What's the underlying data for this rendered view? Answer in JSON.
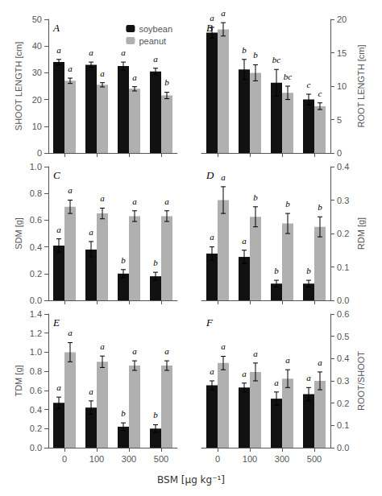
{
  "chart_data": [
    {
      "type": "bar",
      "title": "A",
      "ylabel": "SHOOT LENGTH [cm]",
      "categories": [
        "0",
        "100",
        "300",
        "500"
      ],
      "series": [
        {
          "name": "soybean",
          "color": "#111111",
          "values": [
            34.0,
            33.0,
            32.5,
            30.5
          ],
          "errors": [
            1.0,
            1.0,
            1.5,
            1.2
          ],
          "annotations": [
            "a",
            "a",
            "a",
            "a"
          ]
        },
        {
          "name": "peanut",
          "color": "#b0b0b0",
          "values": [
            27.0,
            25.5,
            24.0,
            21.5
          ],
          "errors": [
            1.0,
            0.8,
            0.8,
            1.2
          ],
          "annotations": [
            "a",
            "a",
            "a",
            "b"
          ]
        }
      ],
      "ylim": [
        0,
        50
      ],
      "yticks": [
        0,
        10,
        20,
        30,
        40,
        50
      ],
      "grid": false,
      "legend": "upper right",
      "tick_labels": "y"
    },
    {
      "type": "bar",
      "title": "B",
      "ylabel": "ROOT LENGTH [cm]",
      "categories": [
        "0",
        "100",
        "300",
        "500"
      ],
      "series": [
        {
          "name": "soybean",
          "color": "#111111",
          "values": [
            18.0,
            12.5,
            10.5,
            8.0
          ],
          "errors": [
            0.8,
            1.5,
            2.0,
            0.8
          ],
          "annotations": [
            "a",
            "b",
            "bc",
            "c"
          ]
        },
        {
          "name": "peanut",
          "color": "#b0b0b0",
          "values": [
            18.5,
            12.0,
            9.0,
            7.0
          ],
          "errors": [
            1.0,
            1.2,
            1.0,
            0.5
          ],
          "annotations": [
            "a",
            "b",
            "bc",
            "c"
          ]
        }
      ],
      "ylim": [
        0,
        20
      ],
      "yticks": [
        0,
        5,
        10,
        15,
        20
      ],
      "grid": false,
      "legend": false,
      "tick_labels": "y"
    },
    {
      "type": "bar",
      "title": "C",
      "ylabel": "SDM [g]",
      "categories": [
        "0",
        "100",
        "300",
        "500"
      ],
      "series": [
        {
          "name": "soybean",
          "color": "#111111",
          "values": [
            0.41,
            0.38,
            0.2,
            0.18
          ],
          "errors": [
            0.05,
            0.06,
            0.03,
            0.03
          ],
          "annotations": [
            "a",
            "a",
            "b",
            "b"
          ]
        },
        {
          "name": "peanut",
          "color": "#b0b0b0",
          "values": [
            0.7,
            0.65,
            0.63,
            0.63
          ],
          "errors": [
            0.05,
            0.04,
            0.04,
            0.04
          ],
          "annotations": [
            "a",
            "a",
            "a",
            "a"
          ]
        }
      ],
      "ylim": [
        0,
        1.0
      ],
      "yticks": [
        {
          "value": 0,
          "label": "0.0"
        },
        0.2,
        0.4,
        0.6,
        0.8,
        {
          "value": 1.0,
          "label": "1.0"
        }
      ],
      "grid": false,
      "legend": false,
      "tick_labels": "y"
    },
    {
      "type": "bar",
      "title": "D",
      "ylabel": "RDM [g]",
      "categories": [
        "0",
        "100",
        "300",
        "500"
      ],
      "series": [
        {
          "name": "soybean",
          "color": "#111111",
          "values": [
            0.14,
            0.13,
            0.05,
            0.05
          ],
          "errors": [
            0.02,
            0.02,
            0.01,
            0.01
          ],
          "annotations": [
            "a",
            "a",
            "b",
            "b"
          ]
        },
        {
          "name": "peanut",
          "color": "#b0b0b0",
          "values": [
            0.3,
            0.25,
            0.23,
            0.22
          ],
          "errors": [
            0.04,
            0.03,
            0.03,
            0.03
          ],
          "annotations": [
            "a",
            "b",
            "b",
            "b"
          ]
        }
      ],
      "ylim": [
        0,
        0.4
      ],
      "yticks": [
        {
          "value": 0,
          "label": "0.0"
        },
        0.1,
        0.2,
        0.3,
        0.4
      ],
      "grid": false,
      "legend": false,
      "tick_labels": "y"
    },
    {
      "type": "bar",
      "title": "E",
      "ylabel": "TDM [g]",
      "xlabel": "BSM [µg kg⁻¹]",
      "categories": [
        "0",
        "100",
        "300",
        "500"
      ],
      "series": [
        {
          "name": "soybean",
          "color": "#111111",
          "values": [
            0.47,
            0.42,
            0.22,
            0.2
          ],
          "errors": [
            0.06,
            0.07,
            0.04,
            0.04
          ],
          "annotations": [
            "a",
            "a",
            "b",
            "b"
          ]
        },
        {
          "name": "peanut",
          "color": "#b0b0b0",
          "values": [
            1.0,
            0.9,
            0.86,
            0.86
          ],
          "errors": [
            0.1,
            0.06,
            0.05,
            0.05
          ],
          "annotations": [
            "a",
            "a",
            "a",
            "a"
          ]
        }
      ],
      "ylim": [
        0,
        1.4
      ],
      "yticks": [
        {
          "value": 0,
          "label": "0.0"
        },
        0.2,
        0.4,
        0.6,
        0.8,
        {
          "value": 1.0,
          "label": "1.0"
        },
        1.2,
        1.4
      ],
      "grid": false,
      "legend": false
    },
    {
      "type": "bar",
      "title": "F",
      "ylabel": "ROOT/SHOOT",
      "categories": [
        "0",
        "100",
        "300",
        "500"
      ],
      "series": [
        {
          "name": "soybean",
          "color": "#111111",
          "values": [
            0.28,
            0.27,
            0.22,
            0.24
          ],
          "errors": [
            0.02,
            0.02,
            0.03,
            0.03
          ],
          "annotations": [
            "a",
            "a",
            "a",
            "a"
          ]
        },
        {
          "name": "peanut",
          "color": "#b0b0b0",
          "values": [
            0.38,
            0.34,
            0.31,
            0.3
          ],
          "errors": [
            0.03,
            0.04,
            0.04,
            0.04
          ],
          "annotations": [
            "a",
            "a",
            "a",
            "a"
          ]
        }
      ],
      "ylim": [
        0,
        0.6
      ],
      "yticks": [
        {
          "value": 0,
          "label": "0.0"
        },
        0.1,
        0.2,
        0.3,
        0.4,
        0.5,
        0.6
      ],
      "grid": false,
      "legend": false
    }
  ]
}
